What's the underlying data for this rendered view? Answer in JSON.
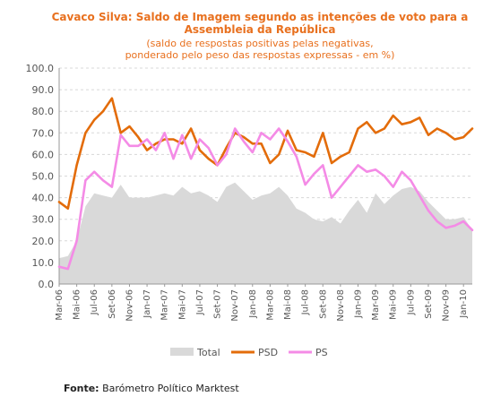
{
  "chart_data": {
    "type": "line",
    "title": "Cavaco Silva: Saldo de Imagem segundo as intenções de voto para a Assembleia da República",
    "title_lines": [
      "Cavaco Silva: Saldo de Imagem segundo as intenções de voto para a",
      "Assembleia da República"
    ],
    "subtitle_lines": [
      "(saldo de respostas positivas pelas negativas,",
      "ponderado pelo peso das respostas expressas - em %)"
    ],
    "xlabel": "",
    "ylabel": "",
    "ylim": [
      0,
      100
    ],
    "yticks": [
      "0.0",
      "10.0",
      "20.0",
      "30.0",
      "40.0",
      "50.0",
      "60.0",
      "70.0",
      "80.0",
      "90.0",
      "100.0"
    ],
    "categories": [
      "Mar-06",
      "Abr-06",
      "Mai-06",
      "Jun-06",
      "Jul-06",
      "Ago-06",
      "Set-06",
      "Out-06",
      "Nov-06",
      "Dez-06",
      "Jan-07",
      "Fev-07",
      "Mar-07",
      "Abr-07",
      "Mai-07",
      "Jun-07",
      "Jul-07",
      "Ago-07",
      "Set-07",
      "Out-07",
      "Nov-07",
      "Dez-07",
      "Jan-08",
      "Fev-08",
      "Mar-08",
      "Abr-08",
      "Mai-08",
      "Jun-08",
      "Jul-08",
      "Ago-08",
      "Set-08",
      "Out-08",
      "Nov-08",
      "Dez-08",
      "Jan-09",
      "Fev-09",
      "Mar-09",
      "Abr-09",
      "Mai-09",
      "Jun-09",
      "Jul-09",
      "Ago-09",
      "Set-09",
      "Out-09",
      "Nov-09",
      "Dez-09",
      "Jan-10",
      "Fev-10"
    ],
    "tick_labels": [
      "Mar-06",
      "Mai-06",
      "Jul-06",
      "Set-06",
      "Nov-06",
      "Jan-07",
      "Mar-07",
      "Mai-07",
      "Jul-07",
      "Set-07",
      "Nov-07",
      "Jan-08",
      "Mar-08",
      "Mai-08",
      "Jul-08",
      "Set-08",
      "Nov-08",
      "Jan-09",
      "Mar-09",
      "Mai-09",
      "Jul-09",
      "Set-09",
      "Nov-09",
      "Jan-10"
    ],
    "grid": true,
    "legend_position": "bottom",
    "series": [
      {
        "name": "Total",
        "render": "area",
        "color": "#d9d9d9",
        "values": [
          12,
          13,
          20,
          36,
          42,
          41,
          40,
          46,
          40,
          40,
          40,
          41,
          42,
          41,
          45,
          42,
          43,
          41,
          38,
          45,
          47,
          43,
          39,
          41,
          42,
          45,
          41,
          35,
          33,
          30,
          29,
          31,
          28,
          34,
          39,
          33,
          42,
          37,
          41,
          44,
          45,
          43,
          38,
          34,
          30,
          30,
          31,
          25
        ]
      },
      {
        "name": "PSD",
        "render": "line",
        "color": "#e36c0a",
        "values": [
          38,
          35,
          55,
          70,
          76,
          80,
          86,
          70,
          73,
          68,
          62,
          65,
          67,
          67,
          65,
          72,
          62,
          58,
          55,
          63,
          70,
          68,
          65,
          65,
          56,
          60,
          71,
          62,
          61,
          59,
          70,
          56,
          59,
          61,
          72,
          75,
          70,
          72,
          78,
          74,
          75,
          77,
          69,
          72,
          70,
          67,
          68,
          72
        ]
      },
      {
        "name": "PS",
        "render": "line",
        "color": "#f48be6",
        "values": [
          8,
          7,
          20,
          48,
          52,
          48,
          45,
          69,
          64,
          64,
          67,
          62,
          70,
          58,
          69,
          58,
          67,
          63,
          55,
          60,
          72,
          66,
          61,
          70,
          67,
          72,
          66,
          59,
          46,
          51,
          55,
          40,
          45,
          50,
          55,
          52,
          53,
          50,
          45,
          52,
          48,
          41,
          34,
          29,
          26,
          27,
          29,
          25
        ]
      }
    ]
  },
  "source": {
    "label": "Fonte:",
    "text": " Barómetro Político Marktest"
  }
}
